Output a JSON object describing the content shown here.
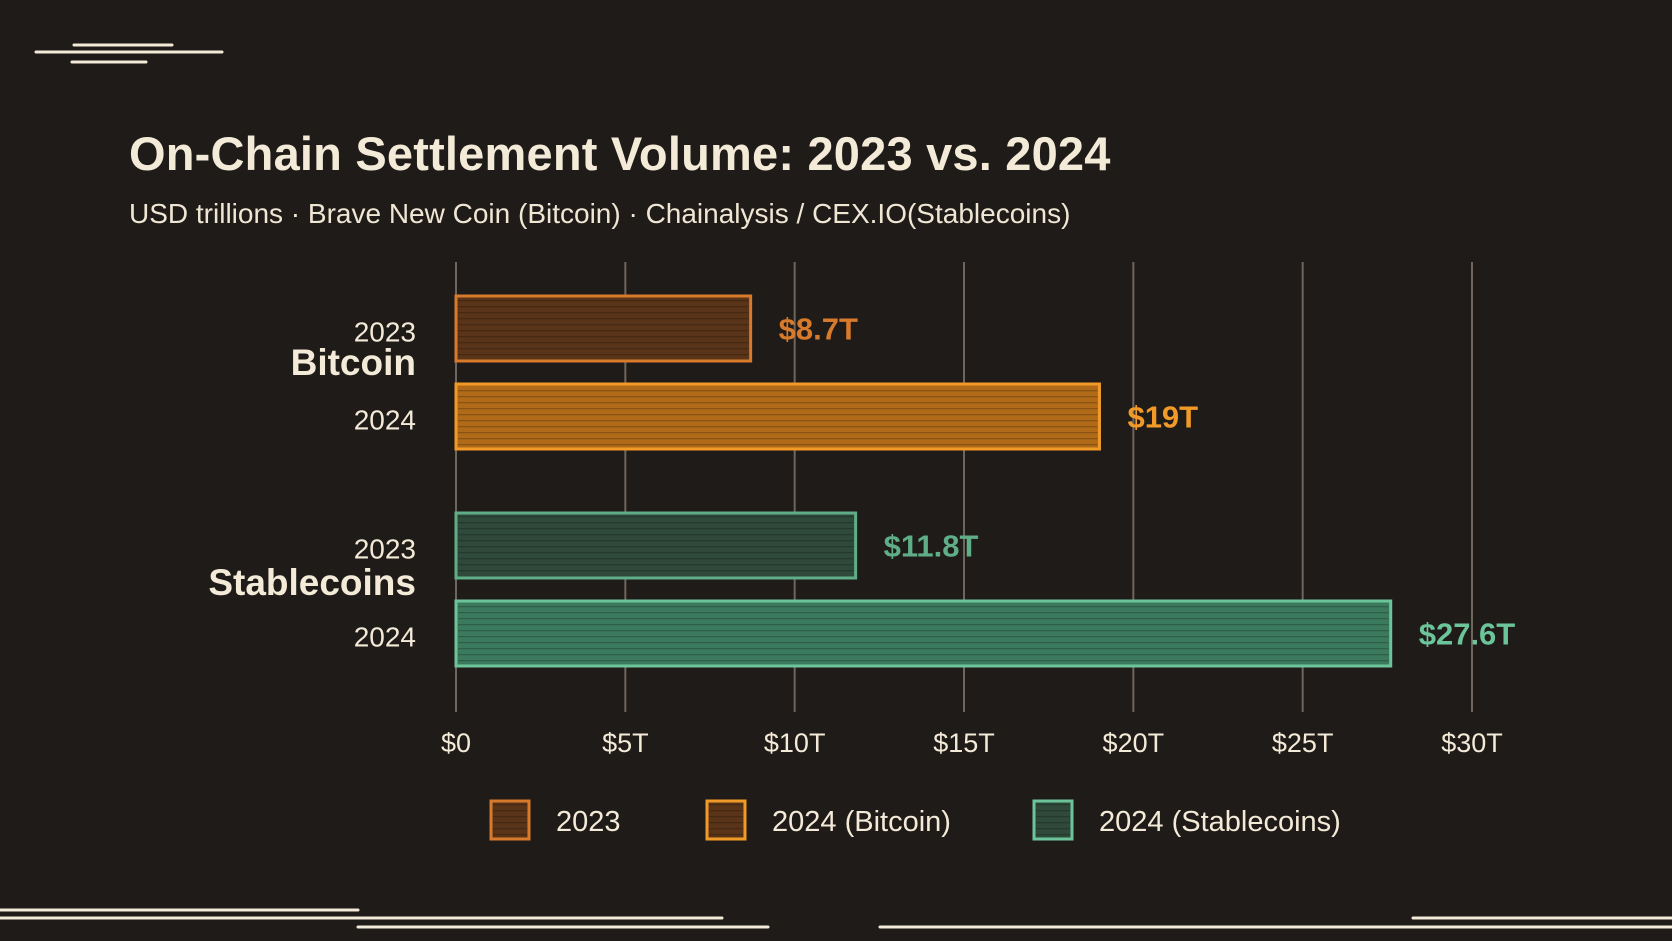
{
  "title": "On-Chain Settlement Volume: 2023 vs. 2024",
  "subtitle": "USD trillions · Brave New Coin (Bitcoin) · Chainalysis / CEX.IO(Stablecoins)",
  "chart_data": {
    "type": "bar",
    "orientation": "horizontal",
    "unit": "USD trillions",
    "xlim": [
      0,
      30
    ],
    "x_ticks": [
      0,
      5,
      10,
      15,
      20,
      25,
      30
    ],
    "x_tick_labels": [
      "$0",
      "$5T",
      "$10T",
      "$15T",
      "$20T",
      "$25T",
      "$30T"
    ],
    "grid": "vertical",
    "groups": [
      {
        "name": "Bitcoin",
        "bars": [
          {
            "year": "2023",
            "value": 8.7,
            "label": "$8.7T",
            "color": "#d87a2c",
            "fill": "#5a3418"
          },
          {
            "year": "2024",
            "value": 19,
            "label": "$19T",
            "color": "#f29a28",
            "fill": "#b06a18"
          }
        ]
      },
      {
        "name": "Stablecoins",
        "bars": [
          {
            "year": "2023",
            "value": 11.8,
            "label": "$11.8T",
            "color": "#5fae88",
            "fill": "#2f4a3b"
          },
          {
            "year": "2024",
            "value": 27.6,
            "label": "$27.6T",
            "color": "#6cc49a",
            "fill": "#3c7a5d"
          }
        ]
      }
    ],
    "legend": {
      "position": "bottom",
      "items": [
        {
          "label": "2023",
          "color": "#d87a2c",
          "fill": "#5a3418"
        },
        {
          "label": "2024 (Bitcoin)",
          "color": "#f29a28",
          "fill": "#5a3418"
        },
        {
          "label": "2024 (Stablecoins)",
          "color": "#6cc49a",
          "fill": "#2f4a3b"
        }
      ]
    }
  },
  "colors": {
    "background": "#1f1b18",
    "text": "#f3ead8",
    "grid": "#6e665c",
    "accent_lines": "#f3ead8"
  }
}
